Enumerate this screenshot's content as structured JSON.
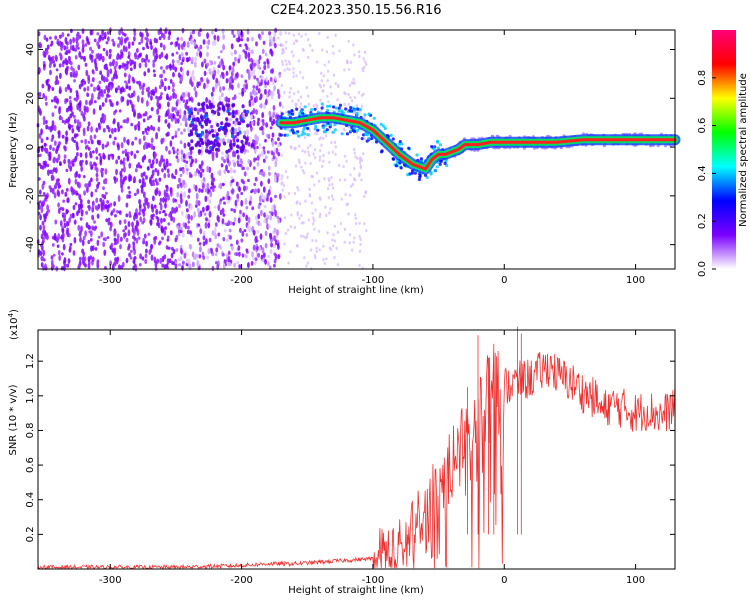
{
  "title": "C2E4.2023.350.15.56.R16",
  "chart_data": [
    {
      "type": "heatmap",
      "xlabel": "Height of straight line (km)",
      "ylabel": "Frequency (Hz)",
      "xlim": [
        -355,
        130
      ],
      "ylim": [
        -50,
        48
      ],
      "xticks": [
        -300,
        -200,
        -100,
        0,
        100
      ],
      "yticks": [
        -40,
        -20,
        0,
        20,
        40
      ],
      "grid": false,
      "ridge": {
        "x": [
          -170,
          -160,
          -150,
          -140,
          -130,
          -120,
          -110,
          -100,
          -90,
          -80,
          -70,
          -60,
          -55,
          -50,
          -45,
          -40,
          -35,
          -30,
          -20,
          -10,
          0,
          20,
          40,
          60,
          80,
          100,
          120,
          130
        ],
        "y": [
          10,
          10,
          11,
          12,
          12,
          11,
          10,
          7,
          2,
          -3,
          -7,
          -9,
          -5,
          -3,
          -3,
          -2,
          -1,
          1,
          1,
          2,
          2,
          2,
          2,
          3,
          3,
          3,
          3,
          3
        ]
      },
      "colorbar": {
        "label": "Normalized spectral amplitude",
        "range": [
          0,
          1
        ],
        "ticks": [
          "0.0",
          "0.2",
          "0.4",
          "0.6",
          "0.8"
        ],
        "colors": [
          "#ffffff",
          "#7a00ff",
          "#0000ff",
          "#00ffff",
          "#00ff00",
          "#ffff00",
          "#ff0000",
          "#ff0077"
        ]
      }
    },
    {
      "type": "line",
      "xlabel": "Height of straight line (km)",
      "ylabel": "SNR (10 * v/v)",
      "exponent_label": "(x10",
      "exponent_power": "4",
      "exponent_close": ")",
      "xlim": [
        -355,
        130
      ],
      "ylim": [
        0,
        1.38
      ],
      "xticks": [
        -300,
        -200,
        -100,
        0,
        100
      ],
      "yticks": [
        "0.2",
        "0.4",
        "0.6",
        "0.8",
        "1.0",
        "1.2"
      ],
      "grid": false,
      "series": [
        {
          "color": "#ee3030",
          "x": [
            -355,
            -300,
            -250,
            -200,
            -180,
            -160,
            -140,
            -120,
            -100,
            -80,
            -60,
            -50,
            -40,
            -30,
            -20,
            -15,
            -10,
            -5,
            0,
            10,
            20,
            30,
            35,
            40,
            50,
            55,
            60,
            70,
            75,
            80,
            90,
            100,
            110,
            120,
            130
          ],
          "y": [
            0.01,
            0.01,
            0.01,
            0.02,
            0.03,
            0.03,
            0.04,
            0.05,
            0.06,
            0.1,
            0.3,
            0.45,
            0.6,
            0.8,
            0.9,
            0.95,
            1.0,
            1.02,
            1.05,
            1.08,
            1.1,
            1.15,
            1.18,
            1.12,
            1.08,
            1.06,
            1.02,
            0.98,
            0.9,
            0.95,
            0.93,
            0.9,
            0.92,
            0.88,
            0.95
          ]
        }
      ],
      "peaks": {
        "x": [
          -28,
          -20,
          -12,
          -8,
          10,
          13
        ],
        "y": [
          1.05,
          1.35,
          1.22,
          1.3,
          1.4,
          1.36
        ]
      }
    }
  ]
}
